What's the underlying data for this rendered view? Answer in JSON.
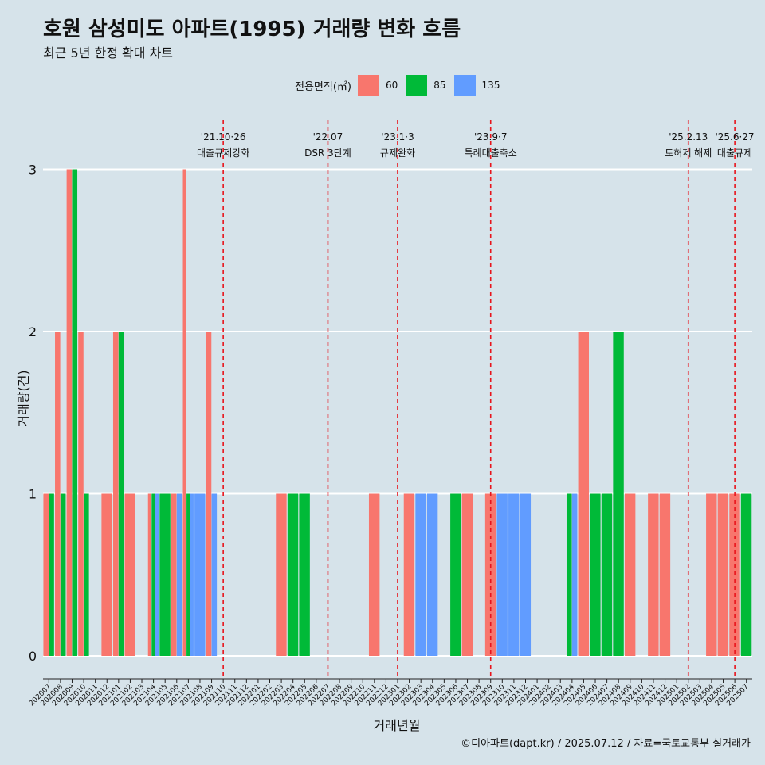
{
  "title": "호원 삼성미도 아파트(1995) 거래량 변화 흐름",
  "subtitle": "최근 5년 한정 확대 차트",
  "caption": "©디아파트(dapt.kr) / 2025.07.12 / 자료=국토교통부 실거래가",
  "legend": {
    "title": "전용면적(㎡)",
    "items": [
      {
        "label": "60",
        "color": "#f8766d"
      },
      {
        "label": "85",
        "color": "#00ba38"
      },
      {
        "label": "135",
        "color": "#619cff"
      }
    ]
  },
  "chart_data": {
    "type": "bar",
    "xlabel": "거래년월",
    "ylabel": "거래량(건)",
    "ylim": [
      0,
      3
    ],
    "y_ticks": [
      0,
      1,
      2,
      3
    ],
    "grid": true,
    "legend_position": "top",
    "categories": [
      "202007",
      "202008",
      "202009",
      "202010",
      "202011",
      "202012",
      "202101",
      "202102",
      "202103",
      "202104",
      "202105",
      "202106",
      "202107",
      "202108",
      "202109",
      "202110",
      "202111",
      "202112",
      "202201",
      "202202",
      "202203",
      "202204",
      "202205",
      "202206",
      "202207",
      "202208",
      "202209",
      "202210",
      "202211",
      "202212",
      "202301",
      "202302",
      "202303",
      "202304",
      "202305",
      "202306",
      "202307",
      "202308",
      "202309",
      "202310",
      "202311",
      "202312",
      "202401",
      "202402",
      "202403",
      "202404",
      "202405",
      "202406",
      "202407",
      "202408",
      "202409",
      "202410",
      "202411",
      "202412",
      "202501",
      "202502",
      "202503",
      "202504",
      "202505",
      "202506",
      "202507"
    ],
    "series": [
      {
        "name": "60",
        "color": "#f8766d",
        "values": [
          1,
          2,
          3,
          2,
          0,
          1,
          2,
          1,
          0,
          1,
          0,
          1,
          3,
          0,
          2,
          0,
          0,
          0,
          0,
          0,
          1,
          0,
          0,
          0,
          0,
          0,
          0,
          0,
          1,
          0,
          0,
          1,
          0,
          0,
          0,
          0,
          1,
          0,
          1,
          0,
          0,
          0,
          0,
          0,
          0,
          0,
          2,
          0,
          0,
          0,
          1,
          0,
          1,
          1,
          0,
          0,
          0,
          1,
          1,
          1,
          0
        ]
      },
      {
        "name": "85",
        "color": "#00ba38",
        "values": [
          1,
          1,
          3,
          1,
          0,
          0,
          2,
          0,
          0,
          1,
          1,
          0,
          1,
          0,
          0,
          0,
          0,
          0,
          0,
          0,
          0,
          1,
          1,
          0,
          0,
          0,
          0,
          0,
          0,
          0,
          0,
          0,
          0,
          0,
          0,
          1,
          0,
          0,
          0,
          0,
          0,
          0,
          0,
          0,
          0,
          1,
          0,
          1,
          1,
          2,
          0,
          0,
          0,
          0,
          0,
          0,
          0,
          0,
          0,
          0,
          1
        ]
      },
      {
        "name": "135",
        "color": "#619cff",
        "values": [
          0,
          0,
          0,
          0,
          0,
          0,
          0,
          0,
          0,
          1,
          0,
          1,
          1,
          1,
          1,
          0,
          0,
          0,
          0,
          0,
          0,
          0,
          0,
          0,
          0,
          0,
          0,
          0,
          0,
          0,
          0,
          0,
          1,
          1,
          0,
          0,
          0,
          0,
          0,
          1,
          1,
          1,
          0,
          0,
          0,
          1,
          0,
          0,
          0,
          0,
          0,
          0,
          0,
          0,
          0,
          0,
          0,
          0,
          0,
          0,
          0
        ]
      }
    ],
    "annotations": [
      {
        "x": "202110",
        "date": "'21.10·26",
        "label": "대출규제강화"
      },
      {
        "x": "202207",
        "date": "'22.07",
        "label": "DSR 3단계"
      },
      {
        "x": "202301",
        "date": "'23.1·3",
        "label": "규제완화"
      },
      {
        "x": "202309",
        "date": "'23.9·7",
        "label": "특례대출축소"
      },
      {
        "x": "202502",
        "date": "'25.2.13",
        "label": "토허제 해제"
      },
      {
        "x": "202506",
        "date": "'25.6·27",
        "label": "대출규제"
      }
    ]
  }
}
